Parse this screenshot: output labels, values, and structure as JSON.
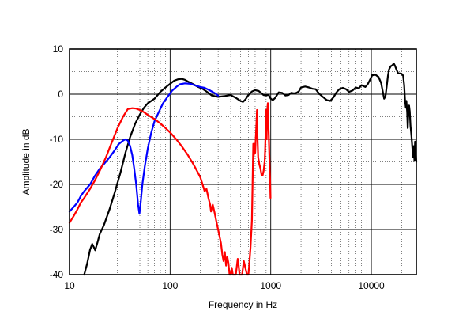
{
  "chart_data": {
    "type": "line",
    "title": "",
    "xlabel": "Frequency in Hz",
    "ylabel": "Amplitude in dB",
    "xscale": "log",
    "xlim": [
      10,
      28000
    ],
    "ylim": [
      -40,
      10
    ],
    "grid": true,
    "legend": "none",
    "x_tick_labels": [
      {
        "value": 10,
        "label": "10"
      },
      {
        "value": 100,
        "label": "100"
      },
      {
        "value": 1000,
        "label": "1000"
      },
      {
        "value": 10000,
        "label": "10000"
      }
    ],
    "y_tick_labels": [
      {
        "value": 10,
        "label": "10"
      },
      {
        "value": 0,
        "label": "0"
      },
      {
        "value": -10,
        "label": "-10"
      },
      {
        "value": -20,
        "label": "-20"
      },
      {
        "value": -30,
        "label": "-30"
      },
      {
        "value": -40,
        "label": "-40"
      }
    ],
    "series": [
      {
        "color": "#000000",
        "points": [
          [
            14,
            -40
          ],
          [
            15,
            -37.5
          ],
          [
            16,
            -34.5
          ],
          [
            16.8,
            -33.2
          ],
          [
            17.5,
            -34
          ],
          [
            18,
            -34.6
          ],
          [
            19,
            -32.8
          ],
          [
            20,
            -31
          ],
          [
            22,
            -29
          ],
          [
            25,
            -25.5
          ],
          [
            28,
            -22
          ],
          [
            32,
            -17.5
          ],
          [
            36,
            -13
          ],
          [
            40,
            -9.5
          ],
          [
            45,
            -6.5
          ],
          [
            50,
            -4.5
          ],
          [
            55,
            -3
          ],
          [
            60,
            -2
          ],
          [
            70,
            -1
          ],
          [
            80,
            0.5
          ],
          [
            90,
            1.5
          ],
          [
            100,
            2.3
          ],
          [
            110,
            3
          ],
          [
            120,
            3.3
          ],
          [
            130,
            3.4
          ],
          [
            140,
            3.2
          ],
          [
            150,
            2.8
          ],
          [
            170,
            2.2
          ],
          [
            190,
            1.6
          ],
          [
            210,
            1.2
          ],
          [
            230,
            0.6
          ],
          [
            260,
            -0.3
          ],
          [
            300,
            -0.6
          ],
          [
            350,
            -0.4
          ],
          [
            400,
            -0.2
          ],
          [
            450,
            -0.8
          ],
          [
            500,
            -1.5
          ],
          [
            530,
            -1.7
          ],
          [
            560,
            -1.2
          ],
          [
            600,
            -0.2
          ],
          [
            650,
            0.6
          ],
          [
            700,
            0.9
          ],
          [
            760,
            0.7
          ],
          [
            800,
            0.3
          ],
          [
            850,
            -0.2
          ],
          [
            900,
            -0.3
          ],
          [
            950,
            -0.1
          ],
          [
            1000,
            -1
          ],
          [
            1050,
            -1.3
          ],
          [
            1100,
            -0.9
          ],
          [
            1200,
            0.4
          ],
          [
            1300,
            0.3
          ],
          [
            1400,
            -0.3
          ],
          [
            1500,
            -0.2
          ],
          [
            1600,
            0.3
          ],
          [
            1700,
            0.2
          ],
          [
            1800,
            0.3
          ],
          [
            1900,
            0.6
          ],
          [
            2000,
            1.5
          ],
          [
            2200,
            1.7
          ],
          [
            2400,
            1.5
          ],
          [
            2600,
            1.2
          ],
          [
            2800,
            1.1
          ],
          [
            3000,
            0.2
          ],
          [
            3300,
            -0.6
          ],
          [
            3600,
            -1.3
          ],
          [
            3900,
            -1.5
          ],
          [
            4200,
            -0.7
          ],
          [
            4500,
            0.4
          ],
          [
            4800,
            1.1
          ],
          [
            5200,
            1.4
          ],
          [
            5600,
            1.1
          ],
          [
            6000,
            0.5
          ],
          [
            6500,
            0.8
          ],
          [
            7000,
            1.5
          ],
          [
            7500,
            1.3
          ],
          [
            8000,
            2
          ],
          [
            8700,
            1.6
          ],
          [
            9200,
            2.2
          ],
          [
            9700,
            3.2
          ],
          [
            10200,
            4.2
          ],
          [
            11000,
            4.3
          ],
          [
            11800,
            3.8
          ],
          [
            12500,
            2.5
          ],
          [
            13000,
            0.5
          ],
          [
            13400,
            -1
          ],
          [
            13800,
            -0.5
          ],
          [
            14200,
            1.6
          ],
          [
            14600,
            4
          ],
          [
            15000,
            5.5
          ],
          [
            15600,
            6.2
          ],
          [
            16200,
            6.4
          ],
          [
            16700,
            6.8
          ],
          [
            17200,
            6.3
          ],
          [
            17800,
            5.4
          ],
          [
            18500,
            4.6
          ],
          [
            19300,
            4.6
          ],
          [
            20000,
            4.5
          ],
          [
            20700,
            4.1
          ],
          [
            21200,
            2
          ],
          [
            21600,
            -1.2
          ],
          [
            22000,
            -3
          ],
          [
            22300,
            -1.5
          ],
          [
            22700,
            -4
          ],
          [
            23000,
            -7.5
          ],
          [
            23300,
            -4.5
          ],
          [
            23700,
            -2.5
          ],
          [
            24100,
            -3.8
          ],
          [
            24500,
            -7
          ],
          [
            25000,
            -9
          ],
          [
            25500,
            -11.5
          ],
          [
            26000,
            -14
          ],
          [
            26400,
            -11.5
          ],
          [
            26800,
            -14.8
          ],
          [
            27200,
            -10.5
          ],
          [
            27700,
            -13.5
          ],
          [
            28000,
            -15
          ]
        ]
      },
      {
        "color": "#0000ff",
        "points": [
          [
            10,
            -26
          ],
          [
            11,
            -25
          ],
          [
            12,
            -24
          ],
          [
            13,
            -22.5
          ],
          [
            14,
            -21.5
          ],
          [
            16,
            -20
          ],
          [
            18,
            -18
          ],
          [
            20,
            -16.5
          ],
          [
            22,
            -15.5
          ],
          [
            25,
            -14
          ],
          [
            28,
            -12.5
          ],
          [
            31,
            -11
          ],
          [
            34,
            -10.3
          ],
          [
            36,
            -10
          ],
          [
            38,
            -10.3
          ],
          [
            40,
            -11.5
          ],
          [
            42,
            -13.5
          ],
          [
            44,
            -16.5
          ],
          [
            46,
            -20
          ],
          [
            48,
            -24.5
          ],
          [
            49.5,
            -26.5
          ],
          [
            51,
            -24
          ],
          [
            53,
            -20
          ],
          [
            56,
            -16
          ],
          [
            60,
            -12
          ],
          [
            65,
            -8.5
          ],
          [
            70,
            -6
          ],
          [
            77,
            -4
          ],
          [
            85,
            -2
          ],
          [
            95,
            -0.5
          ],
          [
            105,
            0.8
          ],
          [
            115,
            1.6
          ],
          [
            125,
            2.2
          ],
          [
            140,
            2.4
          ],
          [
            160,
            2.3
          ],
          [
            180,
            1.9
          ],
          [
            200,
            1.6
          ],
          [
            220,
            1.4
          ],
          [
            250,
            0.8
          ],
          [
            280,
            0.2
          ],
          [
            300,
            -0.3
          ]
        ]
      },
      {
        "color": "#ff0000",
        "points": [
          [
            10,
            -28.5
          ],
          [
            11,
            -27
          ],
          [
            12,
            -25.5
          ],
          [
            13,
            -24
          ],
          [
            14,
            -23
          ],
          [
            16,
            -21
          ],
          [
            18,
            -19
          ],
          [
            20,
            -17
          ],
          [
            23,
            -14
          ],
          [
            26,
            -11
          ],
          [
            30,
            -7.5
          ],
          [
            34,
            -5
          ],
          [
            38,
            -3.3
          ],
          [
            42,
            -3.1
          ],
          [
            46,
            -3.2
          ],
          [
            50,
            -3.5
          ],
          [
            55,
            -4
          ],
          [
            60,
            -4.6
          ],
          [
            70,
            -5.5
          ],
          [
            80,
            -6.5
          ],
          [
            90,
            -7.5
          ],
          [
            100,
            -8.5
          ],
          [
            115,
            -10
          ],
          [
            130,
            -11.5
          ],
          [
            150,
            -13.5
          ],
          [
            170,
            -15.5
          ],
          [
            190,
            -17.5
          ],
          [
            200,
            -18.5
          ],
          [
            210,
            -20
          ],
          [
            220,
            -21.5
          ],
          [
            230,
            -21
          ],
          [
            240,
            -23
          ],
          [
            250,
            -24.5
          ],
          [
            255,
            -26
          ],
          [
            265,
            -24.5
          ],
          [
            275,
            -26
          ],
          [
            290,
            -28.5
          ],
          [
            300,
            -30
          ],
          [
            310,
            -31.5
          ],
          [
            320,
            -33
          ],
          [
            330,
            -35.5
          ],
          [
            340,
            -37
          ],
          [
            350,
            -35
          ],
          [
            360,
            -38
          ],
          [
            370,
            -36
          ],
          [
            380,
            -37.5
          ],
          [
            390,
            -40
          ],
          [
            400,
            -40
          ],
          [
            410,
            -38.5
          ],
          [
            420,
            -40
          ],
          [
            450,
            -40
          ],
          [
            470,
            -36.5
          ],
          [
            480,
            -38
          ],
          [
            490,
            -40
          ],
          [
            520,
            -40
          ],
          [
            540,
            -37
          ],
          [
            560,
            -38.5
          ],
          [
            580,
            -40
          ],
          [
            600,
            -40
          ],
          [
            610,
            -38
          ],
          [
            630,
            -34
          ],
          [
            650,
            -28
          ],
          [
            660,
            -20
          ],
          [
            670,
            -11
          ],
          [
            680,
            -13.5
          ],
          [
            690,
            -11
          ],
          [
            700,
            -13
          ],
          [
            710,
            -9.5
          ],
          [
            720,
            -7
          ],
          [
            730,
            -3.5
          ],
          [
            740,
            -10
          ],
          [
            750,
            -14
          ],
          [
            770,
            -15.5
          ],
          [
            790,
            -16.5
          ],
          [
            810,
            -17.8
          ],
          [
            830,
            -18
          ],
          [
            850,
            -17
          ],
          [
            870,
            -15
          ],
          [
            880,
            -12.5
          ],
          [
            890,
            -8
          ],
          [
            900,
            -3.5
          ],
          [
            910,
            -10
          ],
          [
            920,
            -4
          ],
          [
            935,
            -2
          ],
          [
            945,
            -6
          ],
          [
            955,
            -9
          ],
          [
            965,
            -12
          ],
          [
            975,
            -16
          ],
          [
            985,
            -19
          ],
          [
            995,
            -23
          ]
        ]
      }
    ]
  }
}
